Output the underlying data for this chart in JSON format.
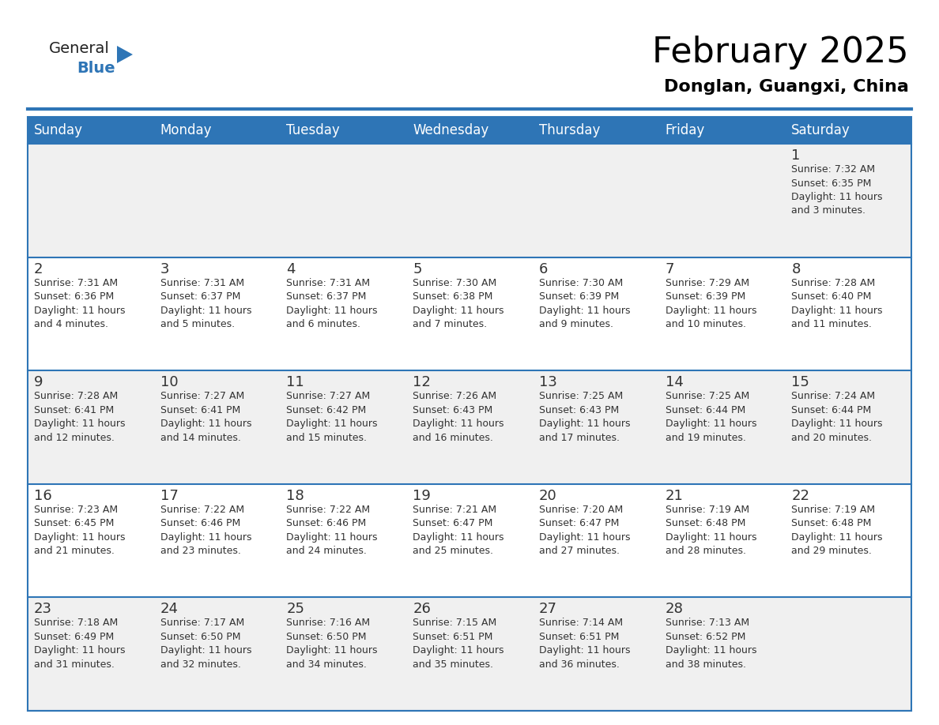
{
  "title": "February 2025",
  "subtitle": "Donglan, Guangxi, China",
  "header_bg_color": "#2E75B6",
  "header_text_color": "#FFFFFF",
  "cell_bg_white": "#FFFFFF",
  "cell_bg_gray": "#F0F0F0",
  "day_number_color": "#333333",
  "text_color": "#333333",
  "border_color": "#2E75B6",
  "days_of_week": [
    "Sunday",
    "Monday",
    "Tuesday",
    "Wednesday",
    "Thursday",
    "Friday",
    "Saturday"
  ],
  "weeks": [
    [
      {
        "day": "",
        "info": ""
      },
      {
        "day": "",
        "info": ""
      },
      {
        "day": "",
        "info": ""
      },
      {
        "day": "",
        "info": ""
      },
      {
        "day": "",
        "info": ""
      },
      {
        "day": "",
        "info": ""
      },
      {
        "day": "1",
        "info": "Sunrise: 7:32 AM\nSunset: 6:35 PM\nDaylight: 11 hours\nand 3 minutes."
      }
    ],
    [
      {
        "day": "2",
        "info": "Sunrise: 7:31 AM\nSunset: 6:36 PM\nDaylight: 11 hours\nand 4 minutes."
      },
      {
        "day": "3",
        "info": "Sunrise: 7:31 AM\nSunset: 6:37 PM\nDaylight: 11 hours\nand 5 minutes."
      },
      {
        "day": "4",
        "info": "Sunrise: 7:31 AM\nSunset: 6:37 PM\nDaylight: 11 hours\nand 6 minutes."
      },
      {
        "day": "5",
        "info": "Sunrise: 7:30 AM\nSunset: 6:38 PM\nDaylight: 11 hours\nand 7 minutes."
      },
      {
        "day": "6",
        "info": "Sunrise: 7:30 AM\nSunset: 6:39 PM\nDaylight: 11 hours\nand 9 minutes."
      },
      {
        "day": "7",
        "info": "Sunrise: 7:29 AM\nSunset: 6:39 PM\nDaylight: 11 hours\nand 10 minutes."
      },
      {
        "day": "8",
        "info": "Sunrise: 7:28 AM\nSunset: 6:40 PM\nDaylight: 11 hours\nand 11 minutes."
      }
    ],
    [
      {
        "day": "9",
        "info": "Sunrise: 7:28 AM\nSunset: 6:41 PM\nDaylight: 11 hours\nand 12 minutes."
      },
      {
        "day": "10",
        "info": "Sunrise: 7:27 AM\nSunset: 6:41 PM\nDaylight: 11 hours\nand 14 minutes."
      },
      {
        "day": "11",
        "info": "Sunrise: 7:27 AM\nSunset: 6:42 PM\nDaylight: 11 hours\nand 15 minutes."
      },
      {
        "day": "12",
        "info": "Sunrise: 7:26 AM\nSunset: 6:43 PM\nDaylight: 11 hours\nand 16 minutes."
      },
      {
        "day": "13",
        "info": "Sunrise: 7:25 AM\nSunset: 6:43 PM\nDaylight: 11 hours\nand 17 minutes."
      },
      {
        "day": "14",
        "info": "Sunrise: 7:25 AM\nSunset: 6:44 PM\nDaylight: 11 hours\nand 19 minutes."
      },
      {
        "day": "15",
        "info": "Sunrise: 7:24 AM\nSunset: 6:44 PM\nDaylight: 11 hours\nand 20 minutes."
      }
    ],
    [
      {
        "day": "16",
        "info": "Sunrise: 7:23 AM\nSunset: 6:45 PM\nDaylight: 11 hours\nand 21 minutes."
      },
      {
        "day": "17",
        "info": "Sunrise: 7:22 AM\nSunset: 6:46 PM\nDaylight: 11 hours\nand 23 minutes."
      },
      {
        "day": "18",
        "info": "Sunrise: 7:22 AM\nSunset: 6:46 PM\nDaylight: 11 hours\nand 24 minutes."
      },
      {
        "day": "19",
        "info": "Sunrise: 7:21 AM\nSunset: 6:47 PM\nDaylight: 11 hours\nand 25 minutes."
      },
      {
        "day": "20",
        "info": "Sunrise: 7:20 AM\nSunset: 6:47 PM\nDaylight: 11 hours\nand 27 minutes."
      },
      {
        "day": "21",
        "info": "Sunrise: 7:19 AM\nSunset: 6:48 PM\nDaylight: 11 hours\nand 28 minutes."
      },
      {
        "day": "22",
        "info": "Sunrise: 7:19 AM\nSunset: 6:48 PM\nDaylight: 11 hours\nand 29 minutes."
      }
    ],
    [
      {
        "day": "23",
        "info": "Sunrise: 7:18 AM\nSunset: 6:49 PM\nDaylight: 11 hours\nand 31 minutes."
      },
      {
        "day": "24",
        "info": "Sunrise: 7:17 AM\nSunset: 6:50 PM\nDaylight: 11 hours\nand 32 minutes."
      },
      {
        "day": "25",
        "info": "Sunrise: 7:16 AM\nSunset: 6:50 PM\nDaylight: 11 hours\nand 34 minutes."
      },
      {
        "day": "26",
        "info": "Sunrise: 7:15 AM\nSunset: 6:51 PM\nDaylight: 11 hours\nand 35 minutes."
      },
      {
        "day": "27",
        "info": "Sunrise: 7:14 AM\nSunset: 6:51 PM\nDaylight: 11 hours\nand 36 minutes."
      },
      {
        "day": "28",
        "info": "Sunrise: 7:13 AM\nSunset: 6:52 PM\nDaylight: 11 hours\nand 38 minutes."
      },
      {
        "day": "",
        "info": ""
      }
    ]
  ],
  "logo_text_general": "General",
  "logo_text_blue": "Blue",
  "logo_general_color": "#222222",
  "logo_blue_color": "#2E75B6",
  "logo_triangle_color": "#2E75B6",
  "title_fontsize": 32,
  "subtitle_fontsize": 16,
  "header_fontsize": 12,
  "day_num_fontsize": 13,
  "info_fontsize": 9
}
